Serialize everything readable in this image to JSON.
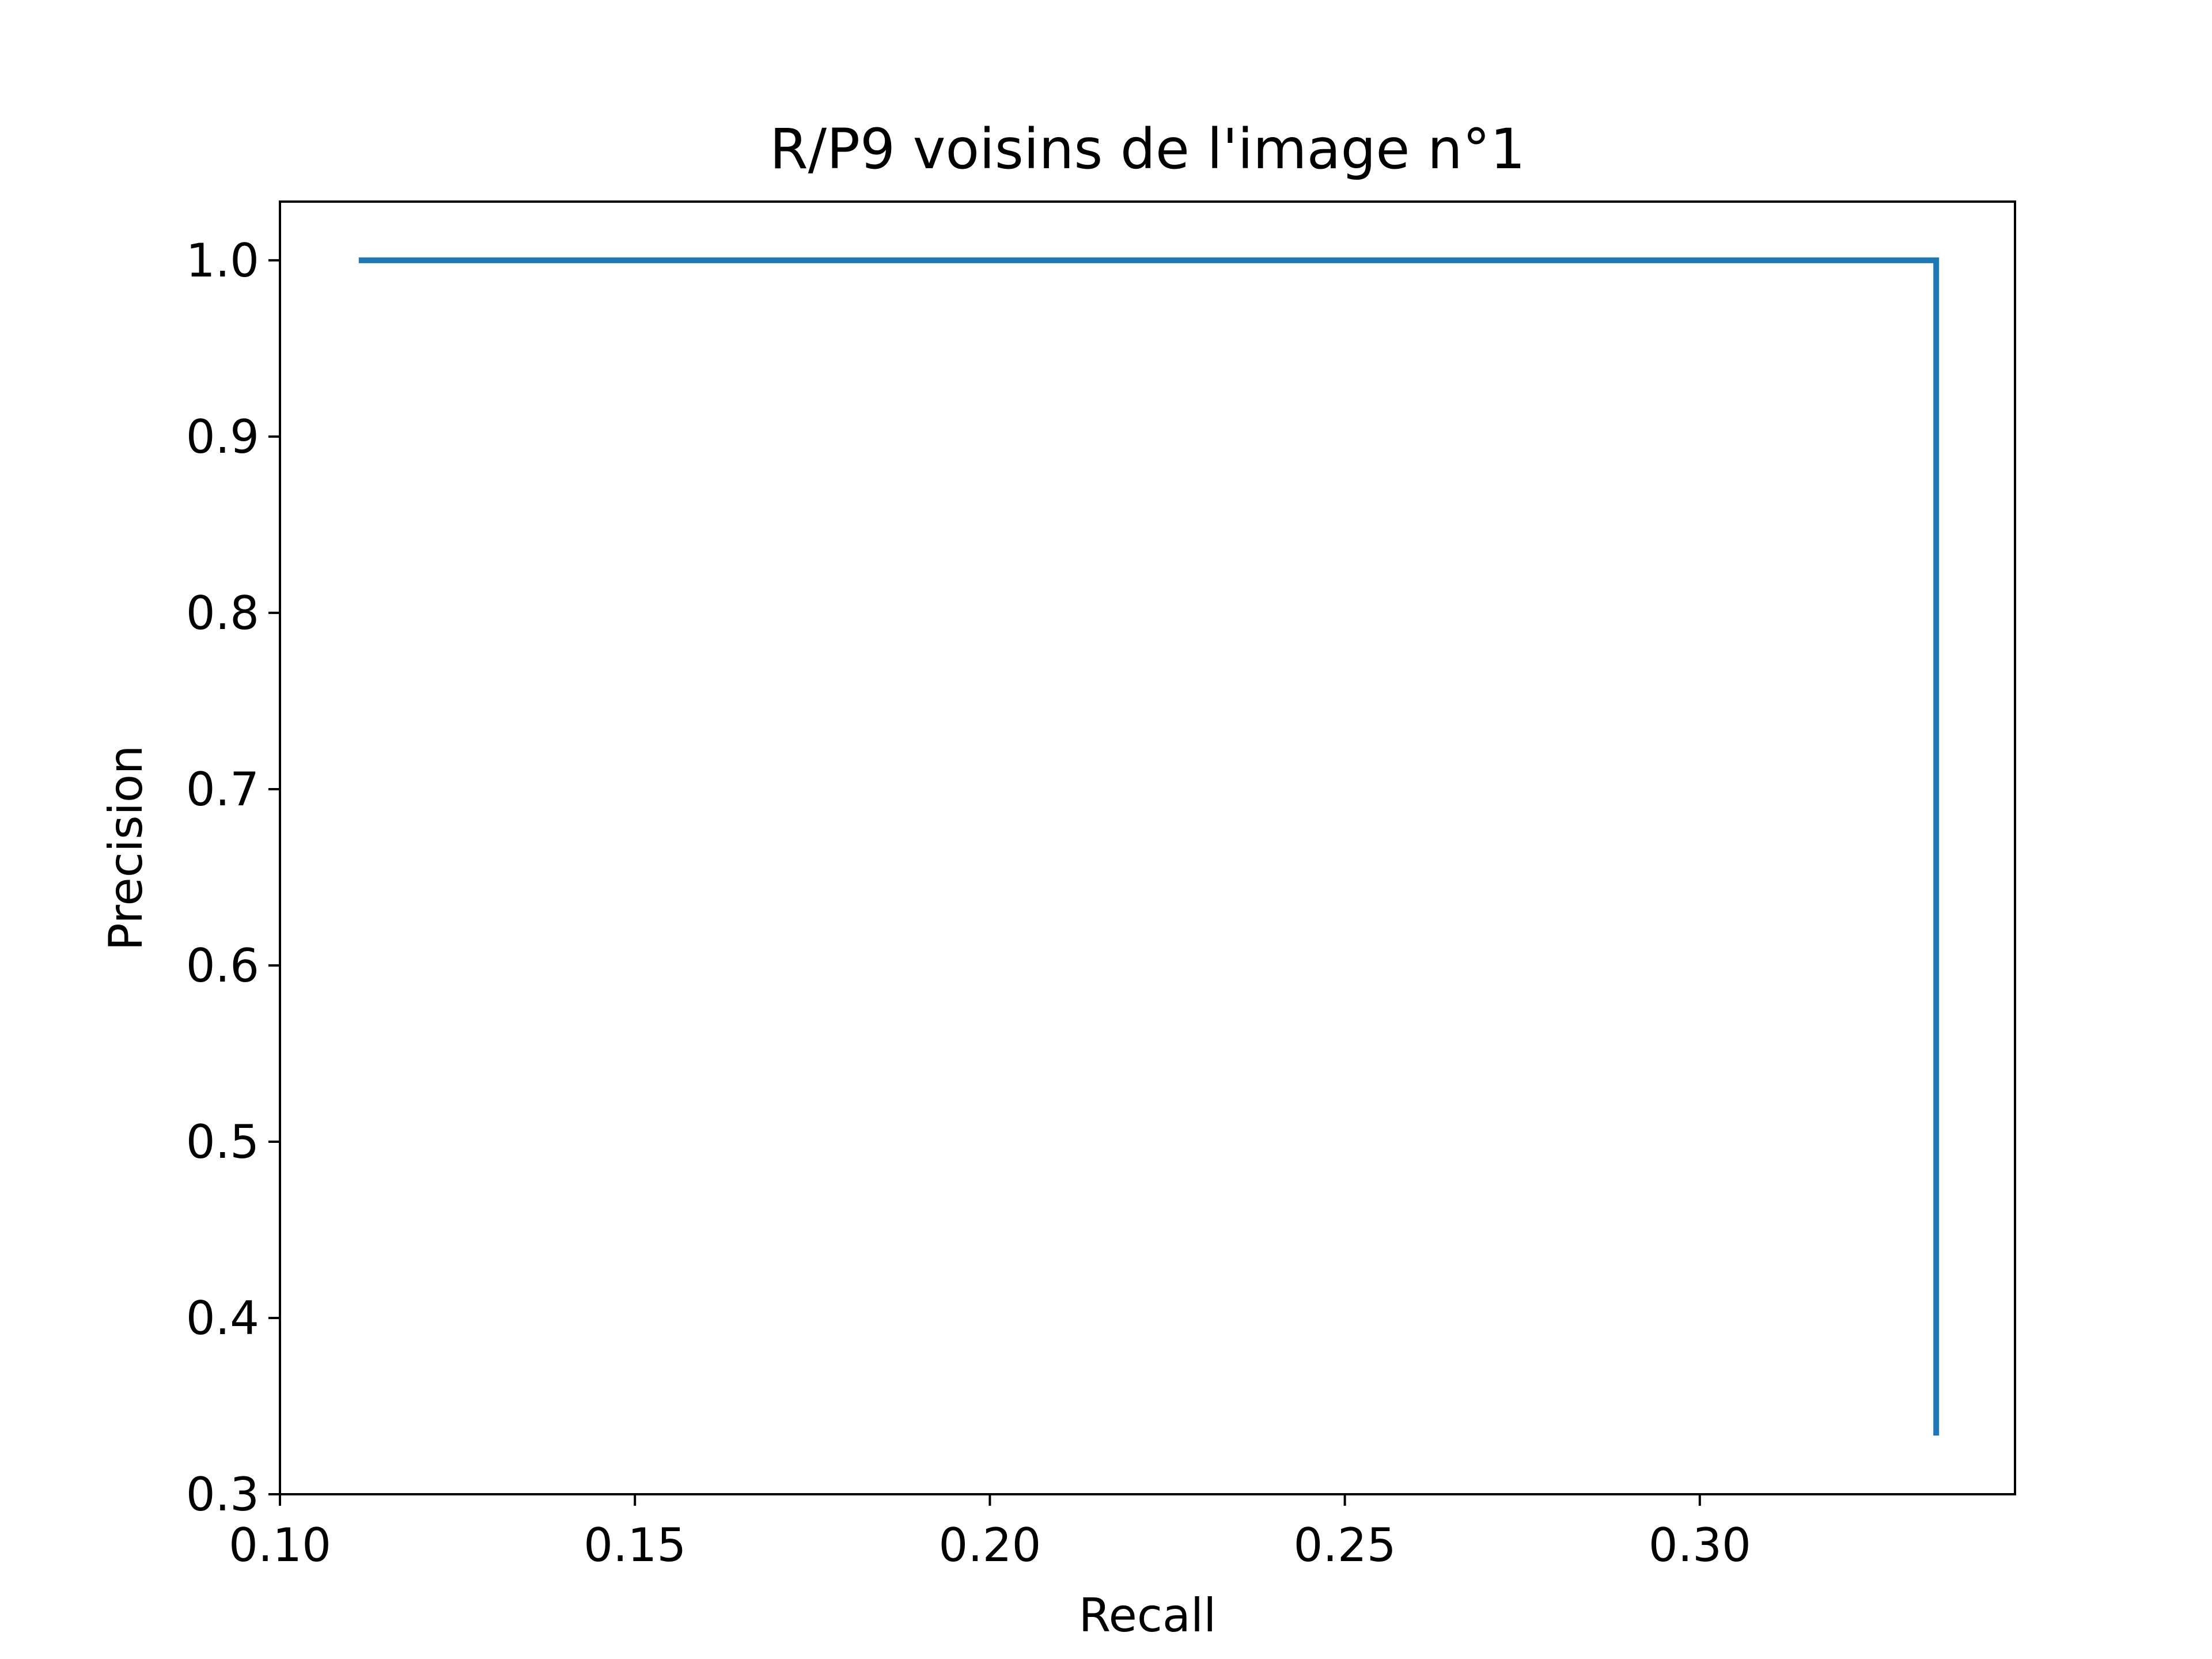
{
  "chart_data": {
    "type": "line",
    "title": "R/P9 voisins de l'image n°1",
    "xlabel": "Recall",
    "ylabel": "Precision",
    "xlim": [
      0.1,
      0.3444
    ],
    "ylim": [
      0.3,
      1.0333
    ],
    "xticks": [
      0.1,
      0.15,
      0.2,
      0.25,
      0.3
    ],
    "xtick_labels": [
      "0.10",
      "0.15",
      "0.20",
      "0.25",
      "0.30"
    ],
    "yticks": [
      0.3,
      0.4,
      0.5,
      0.6,
      0.7,
      0.8,
      0.9,
      1.0
    ],
    "ytick_labels": [
      "0.3",
      "0.4",
      "0.5",
      "0.6",
      "0.7",
      "0.8",
      "0.9",
      "1.0"
    ],
    "grid": false,
    "series": [
      {
        "color": "#1f77b4",
        "x": [
          0.1111,
          0.2222,
          0.3333,
          0.3333
        ],
        "y": [
          1.0,
          1.0,
          1.0,
          0.3333
        ]
      }
    ]
  }
}
